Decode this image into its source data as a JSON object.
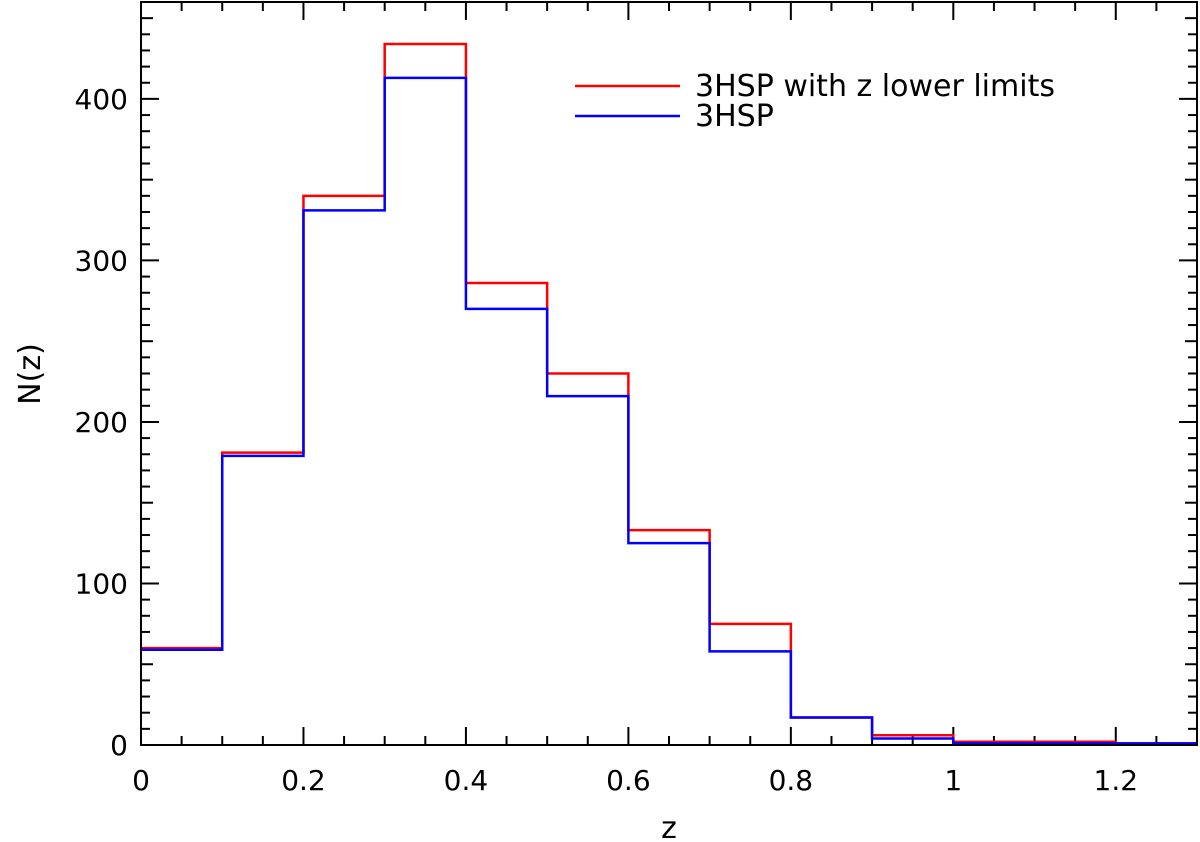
{
  "chart_data": {
    "type": "step-histogram",
    "xlabel": "z",
    "ylabel": "N(z)",
    "xlim": [
      0,
      1.3
    ],
    "ylim": [
      0,
      460
    ],
    "x_ticks": [
      0,
      0.2,
      0.4,
      0.6,
      0.8,
      1,
      1.2
    ],
    "x_tick_labels": [
      "0",
      "0.2",
      "0.4",
      "0.6",
      "0.8",
      "1",
      "1.2"
    ],
    "y_ticks": [
      0,
      100,
      200,
      300,
      400
    ],
    "y_tick_labels": [
      "0",
      "100",
      "200",
      "300",
      "400"
    ],
    "bin_edges": [
      0,
      0.1,
      0.2,
      0.3,
      0.4,
      0.5,
      0.6,
      0.7,
      0.8,
      0.9,
      1.0,
      1.1,
      1.2,
      1.3
    ],
    "legend_position": "top-right",
    "grid": false,
    "series": [
      {
        "name": "3HSP with z lower limits",
        "color": "#ff0000",
        "values": [
          60,
          181,
          340,
          434,
          286,
          230,
          133,
          75,
          17,
          6,
          2,
          2,
          1
        ]
      },
      {
        "name": "3HSP",
        "color": "#0000ff",
        "values": [
          59,
          179,
          331,
          413,
          270,
          216,
          125,
          58,
          17,
          4,
          1,
          1,
          1
        ]
      }
    ]
  }
}
